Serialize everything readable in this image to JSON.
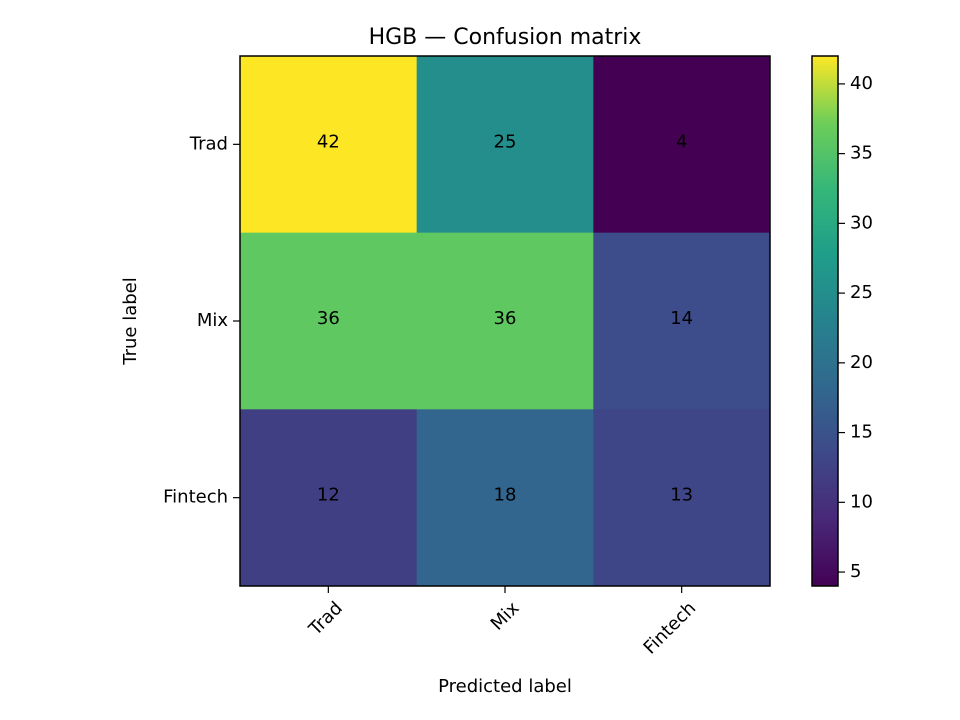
{
  "chart_data": {
    "type": "heatmap",
    "title": "HGB — Confusion matrix",
    "xlabel": "Predicted label",
    "ylabel": "True label",
    "x_categories": [
      "Trad",
      "Mix",
      "Fintech"
    ],
    "y_categories": [
      "Trad",
      "Mix",
      "Fintech"
    ],
    "matrix": [
      [
        42,
        25,
        4
      ],
      [
        36,
        36,
        14
      ],
      [
        12,
        18,
        13
      ]
    ],
    "colormap": "viridis",
    "color_range": [
      4,
      42
    ],
    "colorbar_ticks": [
      5,
      10,
      15,
      20,
      25,
      30,
      35,
      40
    ],
    "x_tick_rotation": "45°",
    "cell_text_color": "#000000"
  }
}
